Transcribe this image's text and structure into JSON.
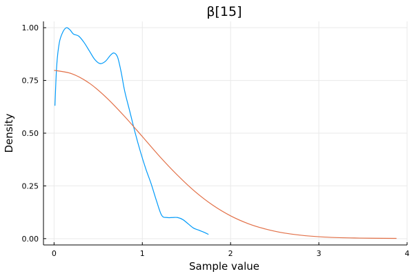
{
  "chart_data": {
    "type": "line",
    "title": "β[15]",
    "xlabel": "Sample value",
    "ylabel": "Density",
    "xlim": [
      -0.12,
      4
    ],
    "ylim": [
      -0.03,
      1.03
    ],
    "x_ticks": [
      0,
      1,
      2,
      3,
      4
    ],
    "x_tick_labels": [
      "0",
      "1",
      "2",
      "3",
      "4"
    ],
    "y_ticks": [
      0,
      0.25,
      0.5,
      0.75,
      1.0
    ],
    "y_tick_labels": [
      "0.00",
      "0.25",
      "0.50",
      "0.75",
      "1.00"
    ],
    "grid": true,
    "legend": "none",
    "series": [
      {
        "color": "#009af9",
        "x": [
          0.01,
          0.03,
          0.06,
          0.1,
          0.14,
          0.18,
          0.22,
          0.28,
          0.34,
          0.4,
          0.46,
          0.52,
          0.58,
          0.64,
          0.68,
          0.72,
          0.76,
          0.8,
          0.86,
          0.92,
          0.98,
          1.04,
          1.1,
          1.16,
          1.22,
          1.28,
          1.34,
          1.4,
          1.46,
          1.52,
          1.58,
          1.64,
          1.7,
          1.75
        ],
        "y": [
          0.63,
          0.82,
          0.93,
          0.98,
          1.0,
          0.99,
          0.97,
          0.96,
          0.93,
          0.89,
          0.85,
          0.83,
          0.84,
          0.87,
          0.88,
          0.86,
          0.79,
          0.7,
          0.6,
          0.5,
          0.41,
          0.33,
          0.26,
          0.18,
          0.11,
          0.1,
          0.1,
          0.1,
          0.09,
          0.07,
          0.05,
          0.04,
          0.03,
          0.02
        ]
      },
      {
        "color": "#e26f46",
        "x": [
          0.0,
          0.2,
          0.4,
          0.6,
          0.8,
          1.0,
          1.2,
          1.4,
          1.6,
          1.8,
          2.0,
          2.2,
          2.4,
          2.6,
          2.8,
          3.0,
          3.2,
          3.4,
          3.6,
          3.88
        ],
        "y": [
          0.798,
          0.782,
          0.737,
          0.666,
          0.579,
          0.484,
          0.388,
          0.3,
          0.222,
          0.158,
          0.108,
          0.071,
          0.045,
          0.027,
          0.016,
          0.009,
          0.005,
          0.003,
          0.002,
          0.001
        ]
      }
    ]
  }
}
